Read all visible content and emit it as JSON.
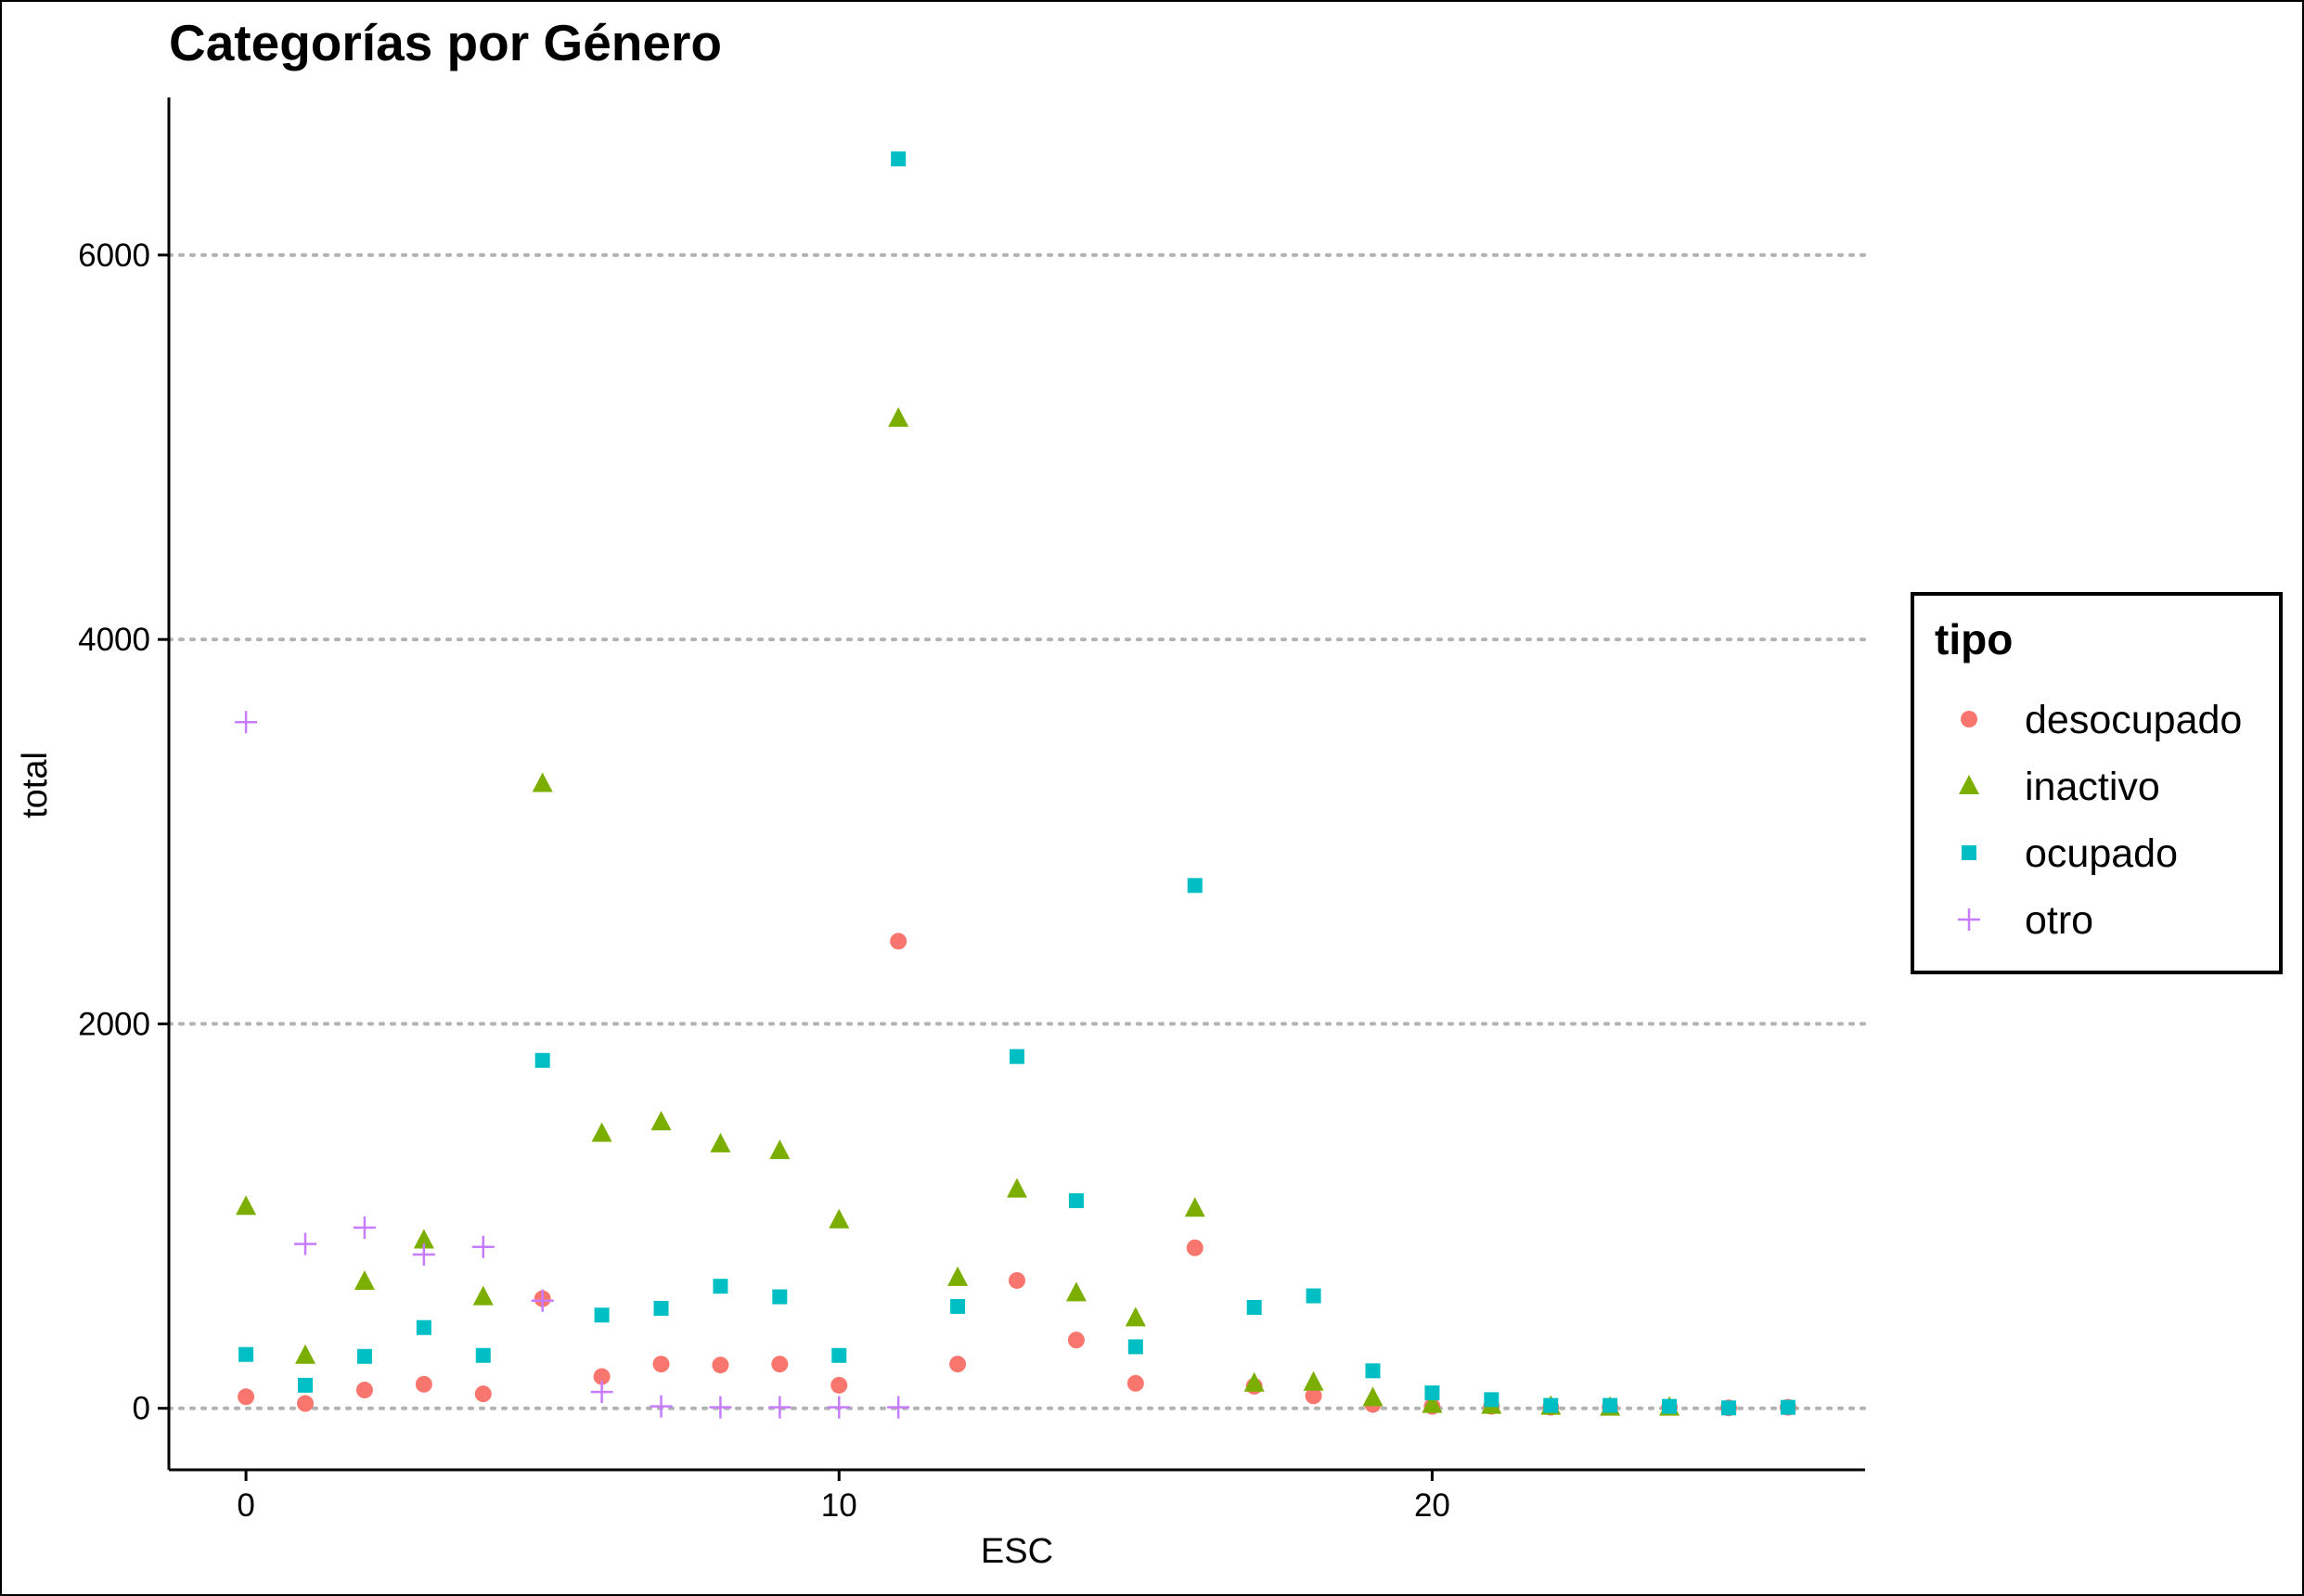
{
  "chart_data": {
    "type": "scatter",
    "title": "Categorías por Género",
    "xlabel": "ESC",
    "ylabel": "total",
    "xlim": [
      -1.3,
      27.3
    ],
    "ylim": [
      -320,
      6820
    ],
    "x_ticks": [
      0,
      10,
      20
    ],
    "y_ticks": [
      0,
      2000,
      4000,
      6000
    ],
    "grid": "horizontal dotted major lines",
    "legend": {
      "title": "tipo",
      "position": "right"
    },
    "series": [
      {
        "name": "desocupado",
        "shape": "circle",
        "color": "#F8766D",
        "points": [
          [
            0,
            60
          ],
          [
            1,
            25
          ],
          [
            2,
            95
          ],
          [
            3,
            125
          ],
          [
            4,
            75
          ],
          [
            5,
            570
          ],
          [
            6,
            165
          ],
          [
            7,
            230
          ],
          [
            8,
            225
          ],
          [
            9,
            230
          ],
          [
            10,
            120
          ],
          [
            11,
            2430
          ],
          [
            12,
            230
          ],
          [
            13,
            665
          ],
          [
            14,
            355
          ],
          [
            15,
            130
          ],
          [
            16,
            835
          ],
          [
            17,
            115
          ],
          [
            18,
            65
          ],
          [
            19,
            20
          ],
          [
            20,
            10
          ],
          [
            21,
            10
          ],
          [
            22,
            5
          ],
          [
            23,
            5
          ],
          [
            24,
            5
          ],
          [
            25,
            2
          ],
          [
            26,
            5
          ]
        ]
      },
      {
        "name": "inactivo",
        "shape": "triangle",
        "color": "#7CAE00",
        "points": [
          [
            0,
            1050
          ],
          [
            1,
            275
          ],
          [
            2,
            660
          ],
          [
            3,
            875
          ],
          [
            4,
            580
          ],
          [
            5,
            3250
          ],
          [
            6,
            1430
          ],
          [
            7,
            1490
          ],
          [
            8,
            1375
          ],
          [
            9,
            1340
          ],
          [
            10,
            980
          ],
          [
            11,
            5150
          ],
          [
            12,
            680
          ],
          [
            13,
            1140
          ],
          [
            14,
            600
          ],
          [
            15,
            470
          ],
          [
            16,
            1040
          ],
          [
            17,
            130
          ],
          [
            18,
            135
          ],
          [
            19,
            55
          ],
          [
            20,
            20
          ],
          [
            21,
            15
          ],
          [
            22,
            10
          ],
          [
            23,
            5
          ],
          [
            24,
            5
          ]
        ]
      },
      {
        "name": "ocupado",
        "shape": "square",
        "color": "#00BFC4",
        "points": [
          [
            0,
            280
          ],
          [
            1,
            120
          ],
          [
            2,
            270
          ],
          [
            3,
            420
          ],
          [
            4,
            275
          ],
          [
            5,
            1810
          ],
          [
            6,
            485
          ],
          [
            7,
            520
          ],
          [
            8,
            635
          ],
          [
            9,
            580
          ],
          [
            10,
            275
          ],
          [
            11,
            6500
          ],
          [
            12,
            530
          ],
          [
            13,
            1830
          ],
          [
            14,
            1080
          ],
          [
            15,
            320
          ],
          [
            16,
            2720
          ],
          [
            17,
            525
          ],
          [
            18,
            585
          ],
          [
            19,
            195
          ],
          [
            20,
            80
          ],
          [
            21,
            45
          ],
          [
            22,
            15
          ],
          [
            23,
            15
          ],
          [
            24,
            10
          ],
          [
            25,
            2
          ],
          [
            26,
            5
          ]
        ]
      },
      {
        "name": "otro",
        "shape": "plus",
        "color": "#C77CFF",
        "points": [
          [
            0,
            3570
          ],
          [
            1,
            855
          ],
          [
            2,
            940
          ],
          [
            3,
            800
          ],
          [
            4,
            840
          ],
          [
            5,
            560
          ],
          [
            6,
            85
          ],
          [
            7,
            10
          ],
          [
            8,
            5
          ],
          [
            9,
            5
          ],
          [
            10,
            5
          ],
          [
            11,
            5
          ]
        ]
      }
    ]
  }
}
